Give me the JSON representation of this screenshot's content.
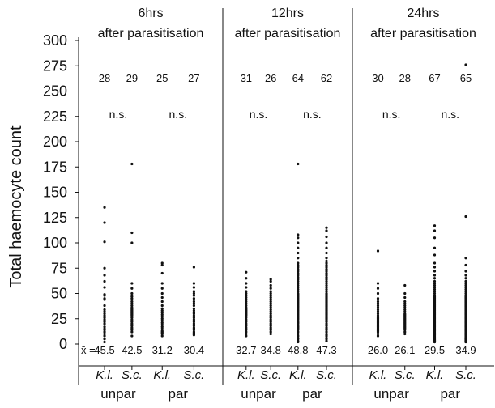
{
  "chart_data": {
    "type": "scatter",
    "ylabel": "Total haemocyte count",
    "ylim": [
      0,
      300
    ],
    "yticks": [
      0,
      25,
      50,
      75,
      100,
      125,
      150,
      175,
      200,
      225,
      250,
      275,
      300
    ],
    "mean_prefix": "x̄ =",
    "point_color": "#111111",
    "panels": [
      {
        "title_line1": "6hrs",
        "title_line2": "after parasitisation",
        "ns_labels": [
          "n.s.",
          "n.s."
        ],
        "groups": [
          {
            "species": "K.l.",
            "condition": "unpar",
            "n": "28",
            "mean": "45.5",
            "values": [
              135,
              120,
              101,
              75,
              68,
              62,
              56,
              49,
              48,
              45,
              44,
              38,
              34,
              32,
              30,
              28,
              26,
              24,
              22,
              20,
              17,
              15,
              14,
              12,
              10,
              8,
              5,
              2
            ]
          },
          {
            "species": "S.c.",
            "condition": "unpar",
            "n": "29",
            "mean": "42.5",
            "values": [
              178,
              110,
              100,
              60,
              55,
              50,
              47,
              45,
              42,
              40,
              38,
              36,
              35,
              34,
              33,
              32,
              31,
              30,
              29,
              28,
              26,
              24,
              22,
              20,
              18,
              16,
              14,
              12,
              8
            ]
          },
          {
            "species": "K.l.",
            "condition": "par",
            "n": "25",
            "mean": "31.2",
            "values": [
              80,
              78,
              70,
              60,
              55,
              50,
              46,
              42,
              38,
              35,
              33,
              31,
              29,
              27,
              25,
              23,
              21,
              19,
              17,
              15,
              13,
              12,
              11,
              10,
              8
            ]
          },
          {
            "species": "S.c.",
            "condition": "par",
            "n": "27",
            "mean": "30.4",
            "values": [
              76,
              60,
              56,
              52,
              50,
              48,
              45,
              42,
              40,
              38,
              35,
              33,
              31,
              30,
              28,
              26,
              24,
              22,
              20,
              18,
              16,
              15,
              14,
              12,
              11,
              10,
              9
            ]
          }
        ]
      },
      {
        "title_line1": "12hrs",
        "title_line2": "after parasitisation",
        "ns_labels": [
          "n.s.",
          "n.s."
        ],
        "groups": [
          {
            "species": "K.l.",
            "condition": "unpar",
            "n": "31",
            "mean": "32.7",
            "values": [
              71,
              65,
              60,
              56,
              52,
              50,
              48,
              46,
              44,
              42,
              40,
              38,
              36,
              35,
              34,
              33,
              32,
              31,
              30,
              29,
              28,
              26,
              24,
              22,
              20,
              18,
              16,
              14,
              12,
              10,
              8
            ]
          },
          {
            "species": "S.c.",
            "condition": "unpar",
            "n": "26",
            "mean": "34.8",
            "values": [
              64,
              62,
              58,
              55,
              52,
              50,
              48,
              46,
              44,
              42,
              40,
              38,
              36,
              34,
              32,
              30,
              28,
              26,
              24,
              22,
              20,
              18,
              16,
              14,
              12,
              10
            ]
          },
          {
            "species": "K.l.",
            "condition": "par",
            "n": "64",
            "mean": "48.8",
            "values": [
              178,
              108,
              105,
              100,
              95,
              90,
              85,
              80,
              78,
              76,
              74,
              72,
              70,
              68,
              66,
              64,
              62,
              60,
              58,
              56,
              54,
              52,
              50,
              49,
              48,
              47,
              46,
              45,
              44,
              43,
              42,
              41,
              40,
              39,
              38,
              37,
              36,
              35,
              34,
              33,
              32,
              31,
              30,
              29,
              28,
              27,
              26,
              25,
              24,
              22,
              21,
              20,
              18,
              17,
              16,
              15,
              14,
              12,
              10,
              8,
              6,
              5,
              3,
              2
            ]
          },
          {
            "species": "S.c.",
            "condition": "par",
            "n": "62",
            "mean": "47.3",
            "values": [
              115,
              112,
              106,
              100,
              95,
              90,
              85,
              82,
              80,
              78,
              76,
              74,
              72,
              70,
              68,
              66,
              64,
              62,
              60,
              58,
              56,
              54,
              52,
              50,
              49,
              48,
              47,
              46,
              45,
              44,
              43,
              42,
              41,
              40,
              39,
              38,
              37,
              36,
              35,
              34,
              33,
              32,
              31,
              30,
              29,
              28,
              27,
              26,
              25,
              24,
              22,
              20,
              18,
              16,
              14,
              12,
              10,
              9,
              8,
              6,
              5,
              3
            ]
          }
        ]
      },
      {
        "title_line1": "24hrs",
        "title_line2": "after parasitisation",
        "ns_labels": [
          "n.s.",
          "n.s."
        ],
        "groups": [
          {
            "species": "K.l.",
            "condition": "unpar",
            "n": "30",
            "mean": "26.0",
            "values": [
              92,
              60,
              55,
              50,
              45,
              42,
              40,
              38,
              36,
              34,
              32,
              30,
              28,
              26,
              25,
              24,
              23,
              22,
              21,
              20,
              19,
              18,
              17,
              16,
              15,
              14,
              13,
              12,
              10,
              8
            ]
          },
          {
            "species": "S.c.",
            "condition": "unpar",
            "n": "28",
            "mean": "26.1",
            "values": [
              58,
              50,
              46,
              42,
              40,
              38,
              36,
              34,
              32,
              30,
              29,
              28,
              27,
              26,
              25,
              24,
              23,
              22,
              21,
              20,
              19,
              18,
              17,
              16,
              15,
              14,
              12,
              10
            ]
          },
          {
            "species": "K.l.",
            "condition": "par",
            "n": "67",
            "mean": "29.5",
            "values": [
              117,
              112,
              105,
              95,
              88,
              80,
              76,
              72,
              68,
              65,
              62,
              60,
              58,
              56,
              54,
              52,
              50,
              48,
              47,
              46,
              45,
              44,
              43,
              42,
              41,
              40,
              39,
              38,
              37,
              36,
              35,
              34,
              33,
              32,
              31,
              30,
              29,
              28,
              27,
              26,
              25,
              24,
              23,
              22,
              21,
              20,
              19,
              18,
              17,
              16,
              15,
              14,
              13,
              12,
              11,
              10,
              9,
              8,
              7,
              6,
              5,
              4,
              4,
              3,
              3,
              2,
              2
            ]
          },
          {
            "species": "S.c.",
            "condition": "par",
            "n": "65",
            "mean": "34.9",
            "values": [
              276,
              126,
              85,
              78,
              72,
              68,
              65,
              62,
              60,
              58,
              56,
              54,
              52,
              50,
              48,
              47,
              46,
              45,
              44,
              43,
              42,
              41,
              40,
              39,
              38,
              37,
              36,
              35,
              34,
              33,
              32,
              31,
              30,
              29,
              28,
              27,
              26,
              25,
              24,
              23,
              22,
              21,
              20,
              19,
              18,
              17,
              16,
              15,
              14,
              13,
              12,
              11,
              10,
              9,
              8,
              7,
              6,
              5,
              5,
              4,
              4,
              3,
              3,
              2,
              2
            ]
          }
        ]
      }
    ]
  }
}
